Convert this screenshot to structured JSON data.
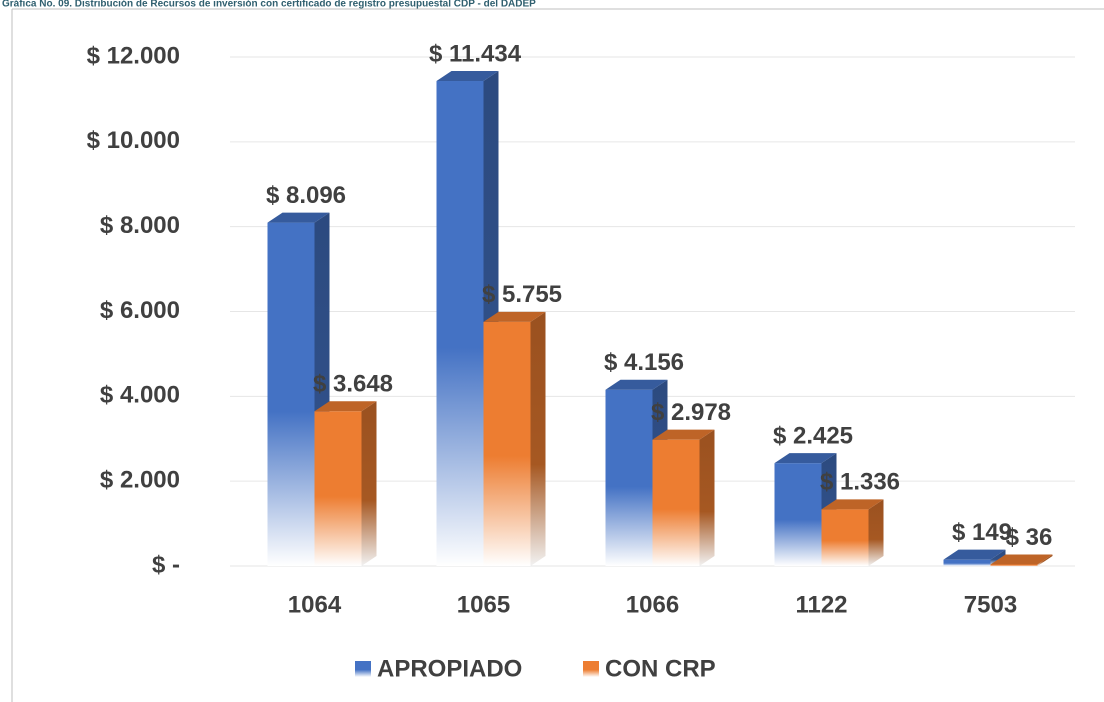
{
  "chart_data": {
    "type": "bar3d",
    "title": "Gráfica No. 09. Distribución de Recursos de inversión con certificado de registro presupuestal CDP - del DADEP",
    "categories": [
      "1064",
      "1065",
      "1066",
      "1122",
      "7503"
    ],
    "series": [
      {
        "name": "APROPIADO",
        "color": "#4472c4",
        "values": [
          8096,
          11434,
          4156,
          2425,
          149
        ],
        "value_labels": [
          "$ 8.096",
          "$ 11.434",
          "$ 4.156",
          "$ 2.425",
          "$ 149"
        ]
      },
      {
        "name": "CON CRP",
        "color": "#ed7d31",
        "values": [
          3648,
          5755,
          2978,
          1336,
          36
        ],
        "value_labels": [
          "$ 3.648",
          "$ 5.755",
          "$ 2.978",
          "$ 1.336",
          "$ 36"
        ]
      }
    ],
    "ylim": [
      0,
      12000
    ],
    "yticks": [
      {
        "value": 0,
        "label": "$ -"
      },
      {
        "value": 2000,
        "label": "$ 2.000"
      },
      {
        "value": 4000,
        "label": "$ 4.000"
      },
      {
        "value": 6000,
        "label": "$ 6.000"
      },
      {
        "value": 8000,
        "label": "$ 8.000"
      },
      {
        "value": 10000,
        "label": "$ 10.000"
      },
      {
        "value": 12000,
        "label": "$ 12.000"
      }
    ],
    "grid": true,
    "legend": "bottom"
  }
}
